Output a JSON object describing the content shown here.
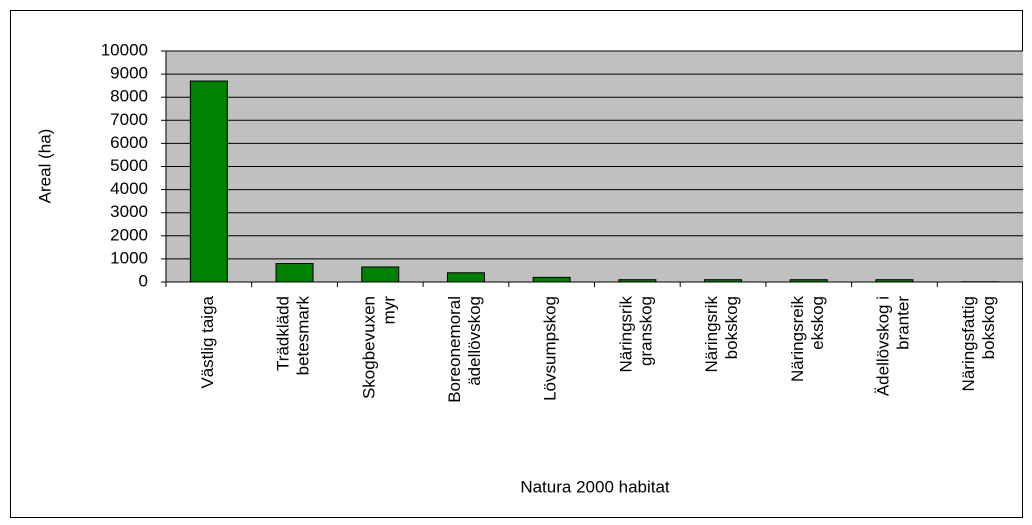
{
  "chart_data": {
    "type": "bar",
    "x_label": "Natura 2000 habitat",
    "y_label": "Areal (ha)",
    "categories": [
      "Västlig taiga",
      "Trädklädd betesmark",
      "Skogbevuxen myr",
      "Boreonemoral ädellövskog",
      "Lövsumpskog",
      "Näringsrik granskog",
      "Näringsrik bokskog",
      "Näringsreik ekskog",
      "Ädellövskog i branter",
      "Näringsfattig bokskog"
    ],
    "values": [
      8700,
      800,
      650,
      400,
      200,
      100,
      100,
      100,
      100,
      10
    ],
    "color": "#008000",
    "ylim": [
      0,
      10000
    ],
    "yticks": [
      0,
      1000,
      2000,
      3000,
      4000,
      5000,
      6000,
      7000,
      8000,
      9000,
      10000
    ],
    "grid": true
  }
}
